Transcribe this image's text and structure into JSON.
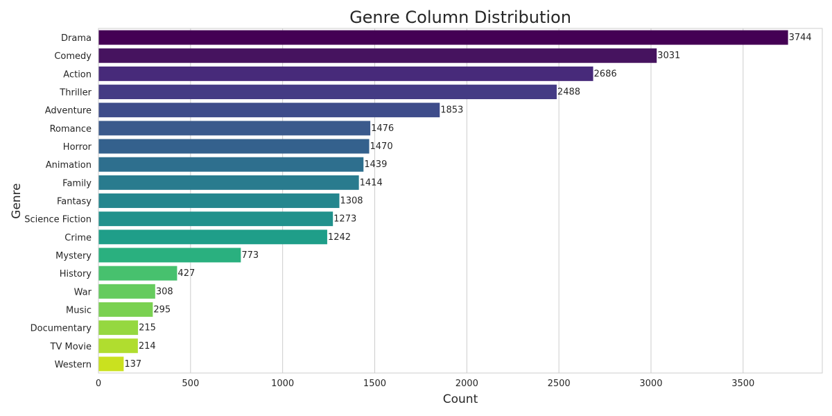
{
  "chart_data": {
    "type": "bar",
    "orientation": "horizontal",
    "title": "Genre Column Distribution",
    "xlabel": "Count",
    "ylabel": "Genre",
    "xlim": [
      0,
      3930
    ],
    "xticks": [
      0,
      500,
      1000,
      1500,
      2000,
      2500,
      3000,
      3500
    ],
    "grid": true,
    "categories": [
      "Drama",
      "Comedy",
      "Action",
      "Thriller",
      "Adventure",
      "Romance",
      "Horror",
      "Animation",
      "Family",
      "Fantasy",
      "Science Fiction",
      "Crime",
      "Mystery",
      "History",
      "War",
      "Music",
      "Documentary",
      "TV Movie",
      "Western"
    ],
    "values": [
      3744,
      3031,
      2686,
      2488,
      1853,
      1476,
      1470,
      1439,
      1414,
      1308,
      1273,
      1242,
      773,
      427,
      308,
      295,
      215,
      214,
      137
    ],
    "colors": [
      "#440154",
      "#46135f",
      "#472a7a",
      "#443b84",
      "#3e4c8a",
      "#3b5a8c",
      "#34618d",
      "#2e6f8e",
      "#297b8e",
      "#24868e",
      "#21918c",
      "#1f9e89",
      "#2ab07f",
      "#47c16e",
      "#65cb5e",
      "#7ad151",
      "#95d840",
      "#b0dd2f",
      "#cae11f"
    ]
  }
}
